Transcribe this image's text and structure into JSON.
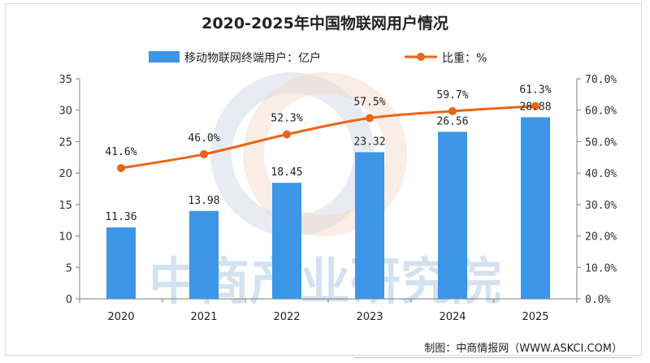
{
  "chart_data": {
    "type": "bar+line",
    "title": "2020-2025年中国物联网用户情况",
    "categories": [
      "2020",
      "2021",
      "2022",
      "2023",
      "2024",
      "2025"
    ],
    "series": [
      {
        "name": "移动物联网终端用户：亿户",
        "type": "bar",
        "axis": "left",
        "values": [
          11.36,
          13.98,
          18.45,
          23.32,
          26.56,
          28.88
        ],
        "labels": [
          "11.36",
          "13.98",
          "18.45",
          "23.32",
          "26.56",
          "28.88"
        ],
        "color": "#3d96e8"
      },
      {
        "name": "比重：%",
        "type": "line",
        "axis": "right",
        "values": [
          41.6,
          46.0,
          52.3,
          57.5,
          59.7,
          61.3
        ],
        "labels": [
          "41.6%",
          "46.0%",
          "52.3%",
          "57.5%",
          "59.7%",
          "61.3%"
        ],
        "color": "#e8661a"
      }
    ],
    "y_left": {
      "min": 0,
      "max": 35,
      "ticks": [
        "0",
        "5",
        "10",
        "15",
        "20",
        "25",
        "30",
        "35"
      ]
    },
    "y_right": {
      "min": 0,
      "max": 70,
      "ticks": [
        "0.0%",
        "10.0%",
        "20.0%",
        "30.0%",
        "40.0%",
        "50.0%",
        "60.0%",
        "70.0%"
      ]
    },
    "legend_position": "top"
  },
  "watermark": "中商产业研究院",
  "credit": "制图：中商情报网（WWW.ASKCI.COM）"
}
